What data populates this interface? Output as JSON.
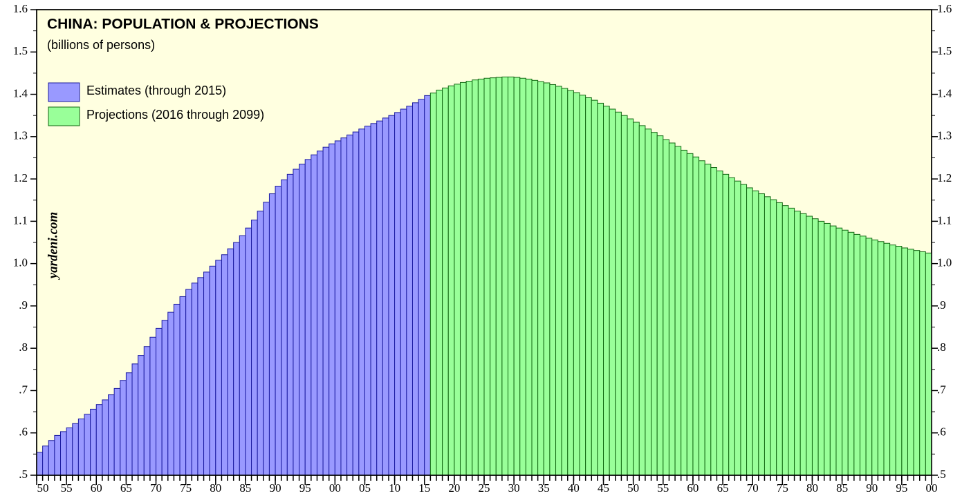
{
  "chart_data": {
    "type": "bar",
    "title": "CHINA: POPULATION & PROJECTIONS",
    "subtitle": "(billions of persons)",
    "annotation": "yardeni.com",
    "background": "#ffffe0",
    "x": [
      1950,
      1951,
      1952,
      1953,
      1954,
      1955,
      1956,
      1957,
      1958,
      1959,
      1960,
      1961,
      1962,
      1963,
      1964,
      1965,
      1966,
      1967,
      1968,
      1969,
      1970,
      1971,
      1972,
      1973,
      1974,
      1975,
      1976,
      1977,
      1978,
      1979,
      1980,
      1981,
      1982,
      1983,
      1984,
      1985,
      1986,
      1987,
      1988,
      1989,
      1990,
      1991,
      1992,
      1993,
      1994,
      1995,
      1996,
      1997,
      1998,
      1999,
      2000,
      2001,
      2002,
      2003,
      2004,
      2005,
      2006,
      2007,
      2008,
      2009,
      2010,
      2011,
      2012,
      2013,
      2014,
      2015,
      2016,
      2017,
      2018,
      2019,
      2020,
      2021,
      2022,
      2023,
      2024,
      2025,
      2026,
      2027,
      2028,
      2029,
      2030,
      2031,
      2032,
      2033,
      2034,
      2035,
      2036,
      2037,
      2038,
      2039,
      2040,
      2041,
      2042,
      2043,
      2044,
      2045,
      2046,
      2047,
      2048,
      2049,
      2050,
      2051,
      2052,
      2053,
      2054,
      2055,
      2056,
      2057,
      2058,
      2059,
      2060,
      2061,
      2062,
      2063,
      2064,
      2065,
      2066,
      2067,
      2068,
      2069,
      2070,
      2071,
      2072,
      2073,
      2074,
      2075,
      2076,
      2077,
      2078,
      2079,
      2080,
      2081,
      2082,
      2083,
      2084,
      2085,
      2086,
      2087,
      2088,
      2089,
      2090,
      2091,
      2092,
      2093,
      2094,
      2095,
      2096,
      2097,
      2098,
      2099
    ],
    "xlim": [
      1950,
      2100
    ],
    "xticks": [
      {
        "value": 1950,
        "label": "50"
      },
      {
        "value": 1955,
        "label": "55"
      },
      {
        "value": 1960,
        "label": "60"
      },
      {
        "value": 1965,
        "label": "65"
      },
      {
        "value": 1970,
        "label": "70"
      },
      {
        "value": 1975,
        "label": "75"
      },
      {
        "value": 1980,
        "label": "80"
      },
      {
        "value": 1985,
        "label": "85"
      },
      {
        "value": 1990,
        "label": "90"
      },
      {
        "value": 1995,
        "label": "95"
      },
      {
        "value": 2000,
        "label": "00"
      },
      {
        "value": 2005,
        "label": "05"
      },
      {
        "value": 2010,
        "label": "10"
      },
      {
        "value": 2015,
        "label": "15"
      },
      {
        "value": 2020,
        "label": "20"
      },
      {
        "value": 2025,
        "label": "25"
      },
      {
        "value": 2030,
        "label": "30"
      },
      {
        "value": 2035,
        "label": "35"
      },
      {
        "value": 2040,
        "label": "40"
      },
      {
        "value": 2045,
        "label": "45"
      },
      {
        "value": 2050,
        "label": "50"
      },
      {
        "value": 2055,
        "label": "55"
      },
      {
        "value": 2060,
        "label": "60"
      },
      {
        "value": 2065,
        "label": "65"
      },
      {
        "value": 2070,
        "label": "70"
      },
      {
        "value": 2075,
        "label": "75"
      },
      {
        "value": 2080,
        "label": "80"
      },
      {
        "value": 2085,
        "label": "85"
      },
      {
        "value": 2090,
        "label": "90"
      },
      {
        "value": 2095,
        "label": "95"
      },
      {
        "value": 2100,
        "label": "00"
      }
    ],
    "ylim": [
      0.5,
      1.6
    ],
    "yticks": [
      {
        "value": 0.5,
        "label": ".5"
      },
      {
        "value": 0.6,
        "label": ".6"
      },
      {
        "value": 0.7,
        "label": ".7"
      },
      {
        "value": 0.8,
        "label": ".8"
      },
      {
        "value": 0.9,
        "label": ".9"
      },
      {
        "value": 1,
        "label": "1.0"
      },
      1.1,
      1.2,
      1.3,
      1.4,
      1.5,
      1.6
    ],
    "y2lim": [
      0.5,
      1.6
    ],
    "y2ticks": [
      {
        "value": 0.5,
        "label": ".5"
      },
      {
        "value": 0.6,
        "label": ".6"
      },
      {
        "value": 0.7,
        "label": ".7"
      },
      {
        "value": 0.8,
        "label": ".8"
      },
      {
        "value": 0.9,
        "label": ".9"
      },
      {
        "value": 1,
        "label": "1.0"
      },
      1.1,
      1.2,
      1.3,
      1.4,
      1.5,
      1.6
    ],
    "series": [
      {
        "name": "Estimates (through 2015)",
        "color": "#9999ff",
        "edge": "#1a1aa0",
        "values": [
          0.554,
          0.569,
          0.582,
          0.594,
          0.603,
          0.612,
          0.622,
          0.633,
          0.644,
          0.656,
          0.667,
          0.678,
          0.69,
          0.705,
          0.724,
          0.742,
          0.763,
          0.783,
          0.804,
          0.826,
          0.847,
          0.866,
          0.885,
          0.904,
          0.922,
          0.939,
          0.954,
          0.967,
          0.98,
          0.994,
          1.008,
          1.021,
          1.035,
          1.05,
          1.066,
          1.084,
          1.103,
          1.124,
          1.145,
          1.165,
          1.183,
          1.198,
          1.211,
          1.223,
          1.235,
          1.246,
          1.257,
          1.266,
          1.275,
          1.283,
          1.29,
          1.297,
          1.304,
          1.311,
          1.318,
          1.325,
          1.331,
          1.337,
          1.344,
          1.35,
          1.357,
          1.365,
          1.372,
          1.38,
          1.388,
          1.397,
          null,
          null,
          null,
          null,
          null,
          null,
          null,
          null,
          null,
          null,
          null,
          null,
          null,
          null,
          null,
          null,
          null,
          null,
          null,
          null,
          null,
          null,
          null,
          null,
          null,
          null,
          null,
          null,
          null,
          null,
          null,
          null,
          null,
          null,
          null,
          null,
          null,
          null,
          null,
          null,
          null,
          null,
          null,
          null,
          null,
          null,
          null,
          null,
          null,
          null,
          null,
          null,
          null,
          null,
          null,
          null,
          null,
          null,
          null,
          null,
          null,
          null,
          null,
          null,
          null,
          null,
          null,
          null,
          null,
          null,
          null,
          null,
          null,
          null,
          null,
          null,
          null,
          null,
          null,
          null,
          null,
          null,
          null,
          null
        ]
      },
      {
        "name": "Projections (2016 through 2099)",
        "color": "#99ff99",
        "edge": "#116611",
        "values": [
          null,
          null,
          null,
          null,
          null,
          null,
          null,
          null,
          null,
          null,
          null,
          null,
          null,
          null,
          null,
          null,
          null,
          null,
          null,
          null,
          null,
          null,
          null,
          null,
          null,
          null,
          null,
          null,
          null,
          null,
          null,
          null,
          null,
          null,
          null,
          null,
          null,
          null,
          null,
          null,
          null,
          null,
          null,
          null,
          null,
          null,
          null,
          null,
          null,
          null,
          null,
          null,
          null,
          null,
          null,
          null,
          null,
          null,
          null,
          null,
          null,
          null,
          null,
          null,
          null,
          null,
          1.403,
          1.41,
          1.415,
          1.42,
          1.424,
          1.428,
          1.431,
          1.434,
          1.436,
          1.438,
          1.439,
          1.44,
          1.441,
          1.441,
          1.44,
          1.438,
          1.436,
          1.433,
          1.43,
          1.427,
          1.423,
          1.419,
          1.414,
          1.409,
          1.404,
          1.398,
          1.392,
          1.386,
          1.379,
          1.372,
          1.365,
          1.358,
          1.35,
          1.342,
          1.334,
          1.326,
          1.318,
          1.31,
          1.302,
          1.293,
          1.285,
          1.277,
          1.268,
          1.26,
          1.252,
          1.243,
          1.235,
          1.227,
          1.219,
          1.211,
          1.203,
          1.195,
          1.187,
          1.179,
          1.172,
          1.165,
          1.158,
          1.151,
          1.144,
          1.137,
          1.131,
          1.124,
          1.118,
          1.112,
          1.106,
          1.1,
          1.095,
          1.089,
          1.084,
          1.079,
          1.074,
          1.069,
          1.065,
          1.06,
          1.056,
          1.052,
          1.048,
          1.044,
          1.041,
          1.037,
          1.034,
          1.031,
          1.028,
          1.025
        ]
      }
    ]
  }
}
